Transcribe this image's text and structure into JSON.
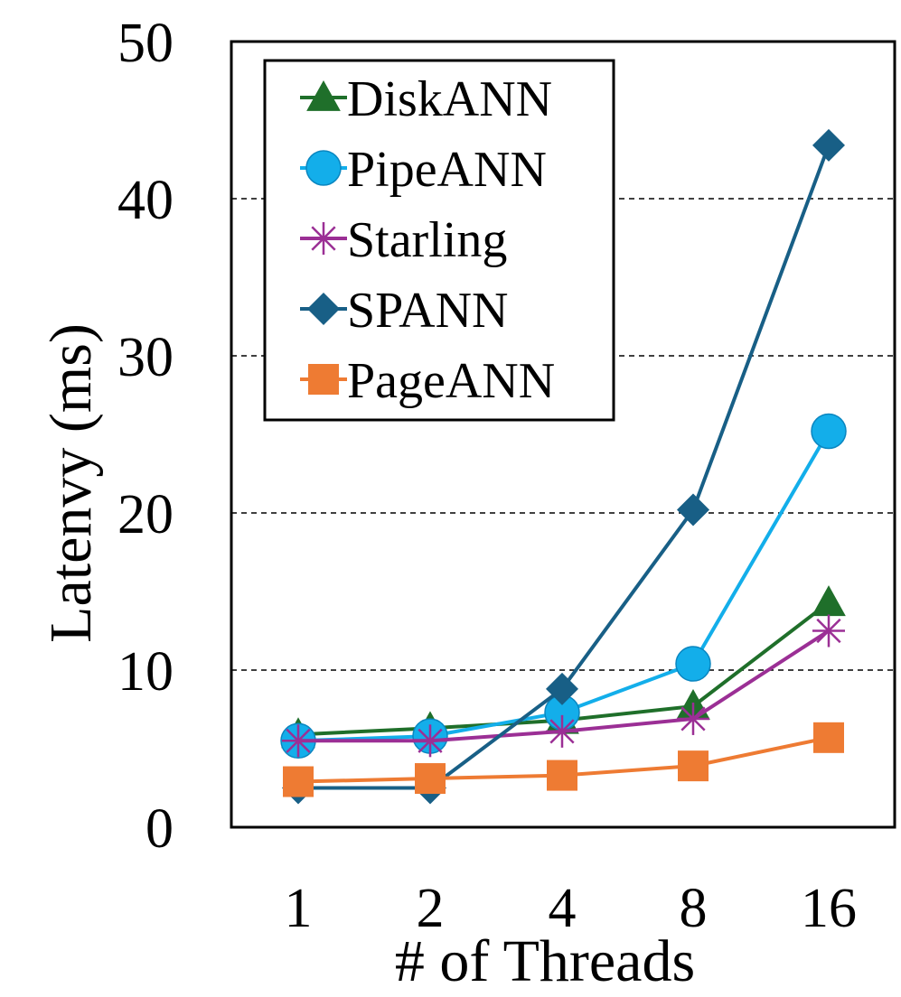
{
  "chart_data": {
    "type": "line",
    "title": "",
    "xlabel": "# of Threads",
    "ylabel": "Latenvy (ms)",
    "categories": [
      "1",
      "2",
      "4",
      "8",
      "16"
    ],
    "ylim": [
      0,
      50
    ],
    "yticks": [
      "0",
      "10",
      "20",
      "30",
      "40",
      "50"
    ],
    "grid": "horizontal dashed",
    "legend_position": "top-left",
    "series": [
      {
        "name": "DiskANN",
        "marker": "triangle",
        "color": "#1f6f2a",
        "values": [
          5.9,
          6.3,
          6.8,
          7.7,
          14.3
        ]
      },
      {
        "name": "PipeANN",
        "marker": "circle",
        "color": "#13aeea",
        "values": [
          5.5,
          5.8,
          7.3,
          10.4,
          25.2
        ]
      },
      {
        "name": "Starling",
        "marker": "star",
        "color": "#9b2f95",
        "values": [
          5.5,
          5.5,
          6.1,
          6.9,
          12.5
        ]
      },
      {
        "name": "SPANN",
        "marker": "diamond",
        "color": "#185f86",
        "values": [
          2.5,
          2.5,
          8.8,
          20.2,
          43.4
        ]
      },
      {
        "name": "PageANN",
        "marker": "square",
        "color": "#ee7b33",
        "values": [
          2.9,
          3.1,
          3.3,
          3.9,
          5.7
        ]
      }
    ]
  }
}
